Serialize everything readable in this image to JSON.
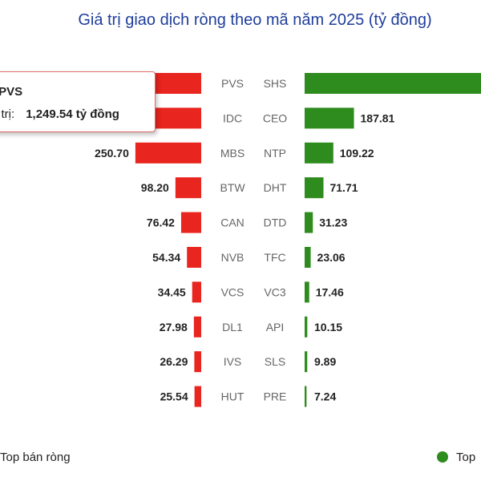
{
  "chart_data": {
    "type": "bar",
    "title": "Giá trị giao dịch ròng theo mã năm 2025 (tỷ đồng)",
    "sell_series": {
      "name": "Top bán ròng",
      "color": "#e8251f",
      "tickers": [
        "PVS",
        "IDC",
        "MBS",
        "BTW",
        "CAN",
        "NVB",
        "VCS",
        "DL1",
        "IVS",
        "HUT"
      ],
      "values": [
        1249.54,
        null,
        250.7,
        98.2,
        76.42,
        54.34,
        34.45,
        27.98,
        26.29,
        25.54
      ],
      "labels": [
        "",
        "",
        "250.70",
        "98.20",
        "76.42",
        "54.34",
        "34.45",
        "27.98",
        "26.29",
        "25.54"
      ]
    },
    "buy_series": {
      "name": "Top",
      "color": "#2e8b1e",
      "tickers": [
        "SHS",
        "CEO",
        "NTP",
        "DHT",
        "DTD",
        "TFC",
        "VC3",
        "API",
        "SLS",
        "PRE"
      ],
      "values": [
        null,
        187.81,
        109.22,
        71.71,
        31.23,
        23.06,
        17.46,
        10.15,
        9.89,
        7.24
      ],
      "labels": [
        "",
        "187.81",
        "109.22",
        "71.71",
        "31.23",
        "23.06",
        "17.46",
        "10.15",
        "9.89",
        "7.24"
      ]
    },
    "tooltip": {
      "line1": ": PVS",
      "line2_label": "á trị:",
      "line2_value": "1,249.54 tỷ đồng"
    },
    "legend": {
      "left_label": "Top bán ròng",
      "right_label": "Top"
    }
  }
}
